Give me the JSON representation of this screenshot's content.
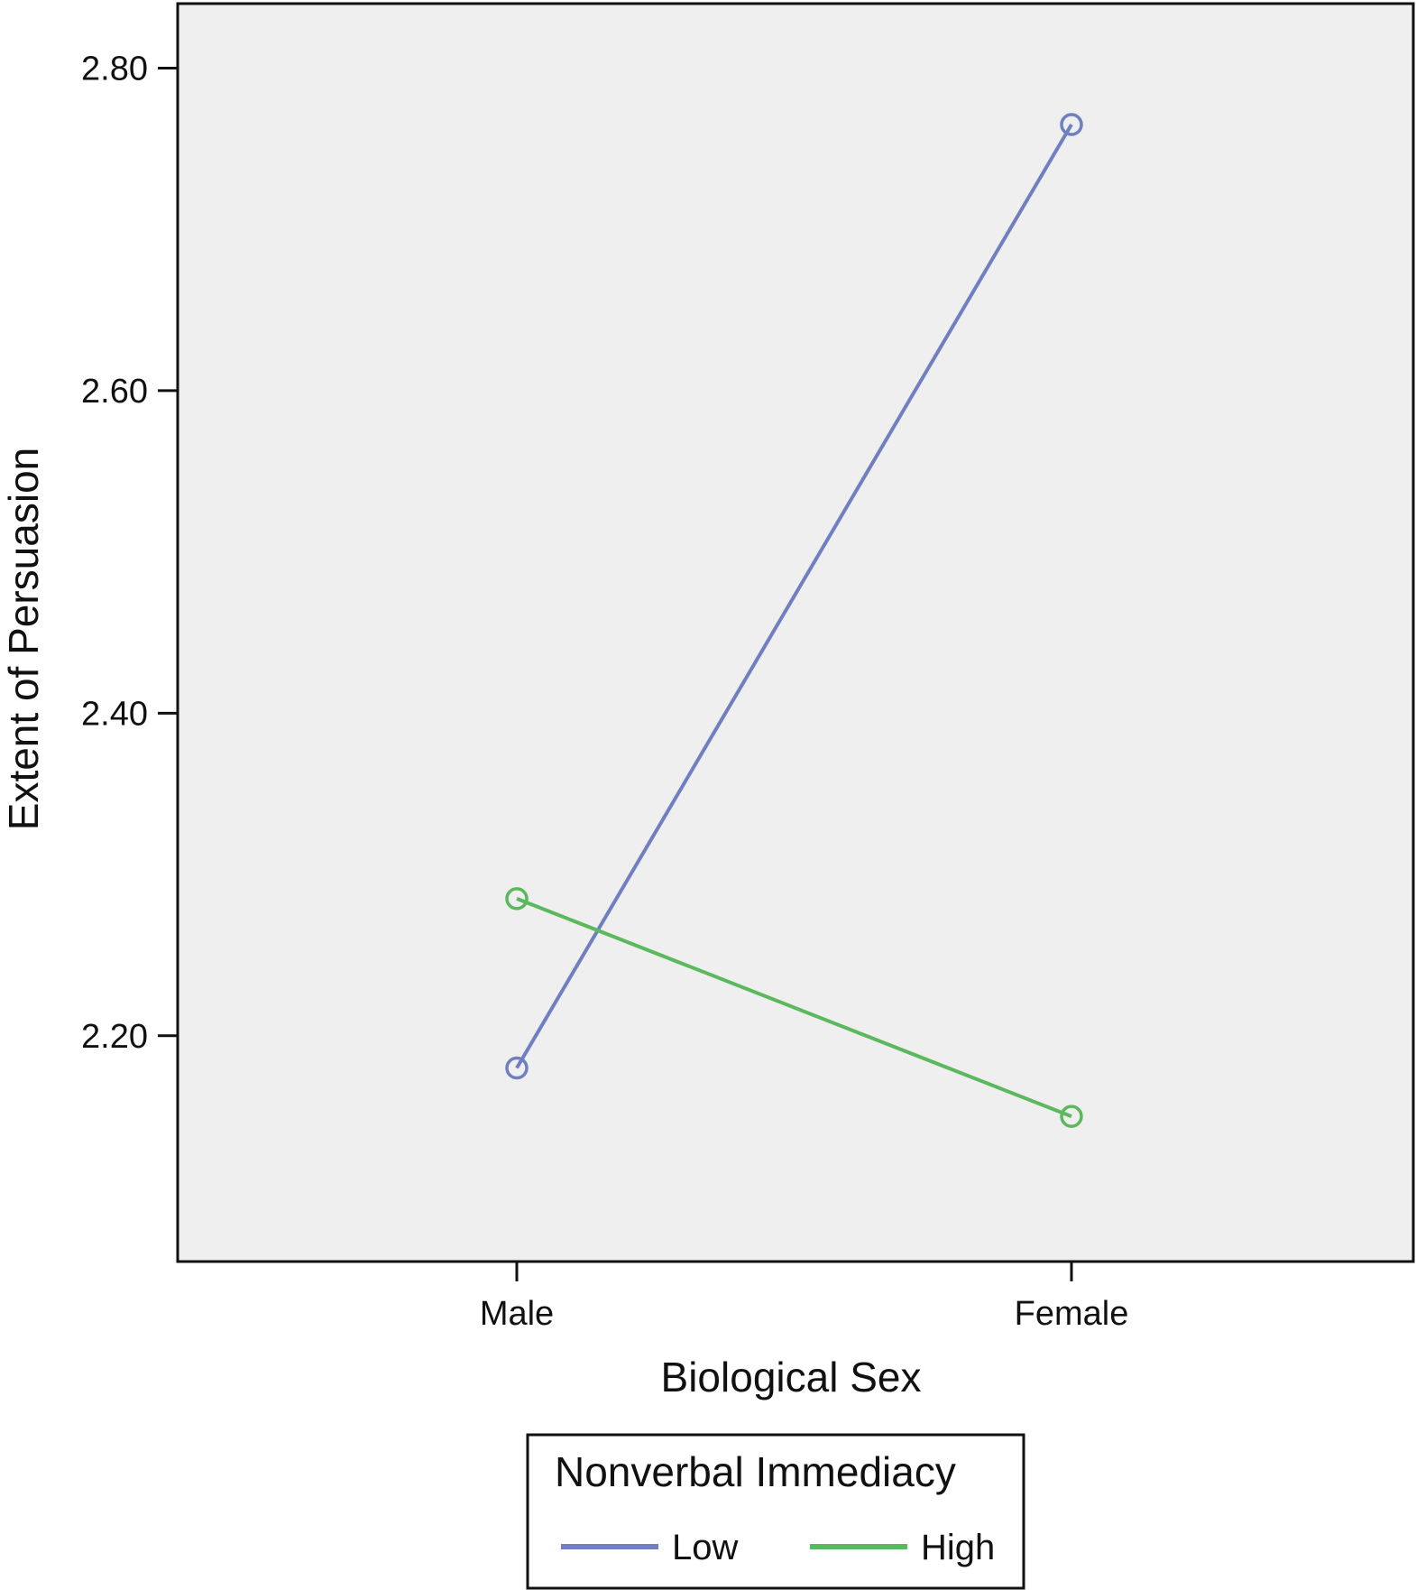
{
  "chart_data": {
    "type": "line",
    "xlabel": "Biological Sex",
    "ylabel": "Extent of Persuasion",
    "categories": [
      "Male",
      "Female"
    ],
    "ylim": [
      2.06,
      2.84
    ],
    "yticks": [
      "2.20",
      "2.40",
      "2.60",
      "2.80"
    ],
    "grid": false,
    "legend": {
      "title": "Nonverbal Immediacy",
      "placement": "bottom"
    },
    "series": [
      {
        "name": "Low",
        "values": [
          2.18,
          2.765
        ],
        "color": "#6f7fc0"
      },
      {
        "name": "High",
        "values": [
          2.285,
          2.15
        ],
        "color": "#5cb85c"
      }
    ]
  }
}
